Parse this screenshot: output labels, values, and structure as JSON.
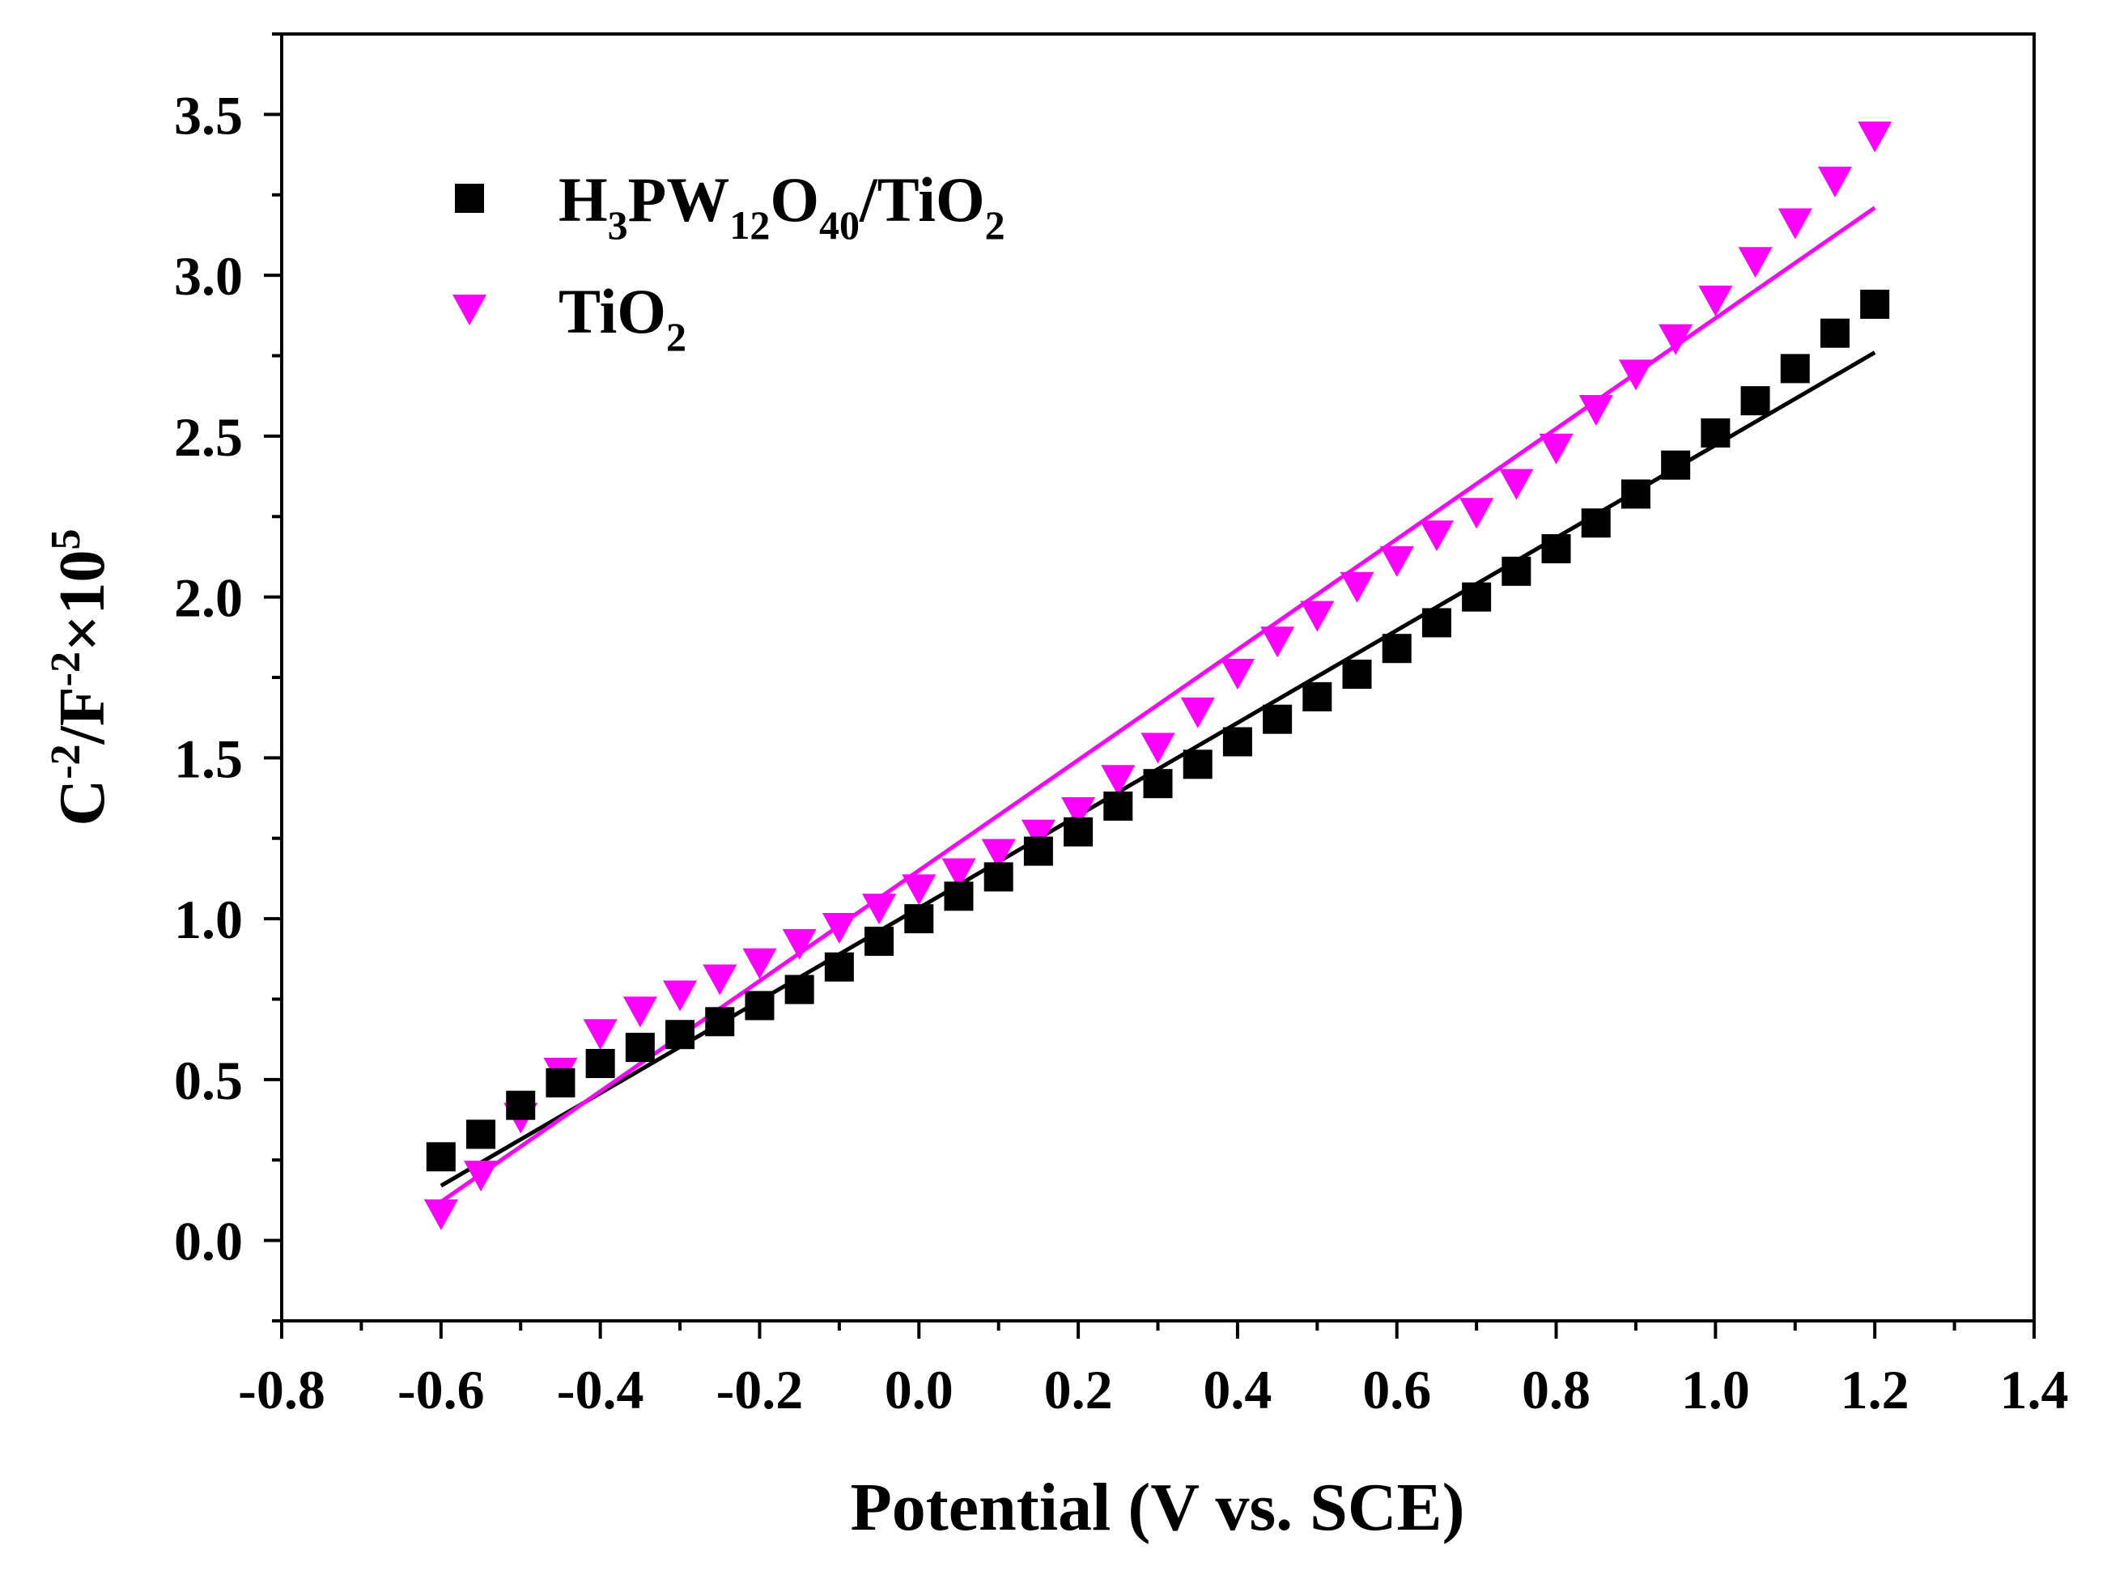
{
  "chart_data": {
    "type": "scatter",
    "title": "",
    "xlabel": "Potential (V vs. SCE)",
    "ylabel": {
      "c": "C",
      "sup1": "-2",
      "f": "/F",
      "sup2": "-2",
      "times": "×10",
      "sup3": "5"
    },
    "xlim": [
      -0.8,
      1.4
    ],
    "ylim": [
      -0.25,
      3.75
    ],
    "x_ticks": [
      -0.8,
      -0.6,
      -0.4,
      -0.2,
      0.0,
      0.2,
      0.4,
      0.6,
      0.8,
      1.0,
      1.2,
      1.4
    ],
    "x_tick_labels": [
      "-0.8",
      "-0.6",
      "-0.4",
      "-0.2",
      "0.0",
      "0.2",
      "0.4",
      "0.6",
      "0.8",
      "1.0",
      "1.2",
      "1.4"
    ],
    "y_ticks": [
      0.0,
      0.5,
      1.0,
      1.5,
      2.0,
      2.5,
      3.0,
      3.5
    ],
    "y_tick_labels": [
      "0.0",
      "0.5",
      "1.0",
      "1.5",
      "2.0",
      "2.5",
      "3.0",
      "3.5"
    ],
    "grid": false,
    "legend_position": "top-left",
    "x": [
      -0.6,
      -0.55,
      -0.5,
      -0.45,
      -0.4,
      -0.35,
      -0.3,
      -0.25,
      -0.2,
      -0.15,
      -0.1,
      -0.05,
      0.0,
      0.05,
      0.1,
      0.15,
      0.2,
      0.25,
      0.3,
      0.35,
      0.4,
      0.45,
      0.5,
      0.55,
      0.6,
      0.65,
      0.7,
      0.75,
      0.8,
      0.85,
      0.9,
      0.95,
      1.0,
      1.05,
      1.1,
      1.15,
      1.2
    ],
    "series": [
      {
        "name": "H3PW12O40/TiO2",
        "legend_parts": [
          {
            "t": "H",
            "sub": false
          },
          {
            "t": "3",
            "sub": true
          },
          {
            "t": "PW",
            "sub": false
          },
          {
            "t": "12",
            "sub": true
          },
          {
            "t": "O",
            "sub": false
          },
          {
            "t": "40",
            "sub": true
          },
          {
            "t": "/TiO",
            "sub": false
          },
          {
            "t": "2",
            "sub": true
          }
        ],
        "marker": "square",
        "color": "#000000",
        "values": [
          0.26,
          0.33,
          0.42,
          0.49,
          0.55,
          0.6,
          0.64,
          0.68,
          0.73,
          0.78,
          0.85,
          0.93,
          1.0,
          1.07,
          1.13,
          1.21,
          1.27,
          1.35,
          1.42,
          1.48,
          1.55,
          1.62,
          1.69,
          1.76,
          1.84,
          1.92,
          2.0,
          2.08,
          2.15,
          2.23,
          2.32,
          2.41,
          2.51,
          2.61,
          2.71,
          2.82,
          2.91
        ],
        "fit": {
          "x": [
            -0.6,
            1.2
          ],
          "y": [
            0.17,
            2.76
          ]
        }
      },
      {
        "name": "TiO2",
        "legend_parts": [
          {
            "t": "TiO",
            "sub": false
          },
          {
            "t": "2",
            "sub": true
          }
        ],
        "marker": "triangle-down",
        "color": "#ff00ff",
        "values": [
          0.08,
          0.2,
          0.38,
          0.52,
          0.64,
          0.71,
          0.76,
          0.81,
          0.86,
          0.92,
          0.97,
          1.03,
          1.09,
          1.14,
          1.2,
          1.26,
          1.33,
          1.43,
          1.53,
          1.64,
          1.76,
          1.86,
          1.94,
          2.03,
          2.11,
          2.19,
          2.26,
          2.35,
          2.46,
          2.58,
          2.69,
          2.8,
          2.92,
          3.04,
          3.16,
          3.29,
          3.43
        ],
        "fit": {
          "x": [
            -0.6,
            1.2
          ],
          "y": [
            0.12,
            3.21
          ]
        }
      }
    ]
  }
}
